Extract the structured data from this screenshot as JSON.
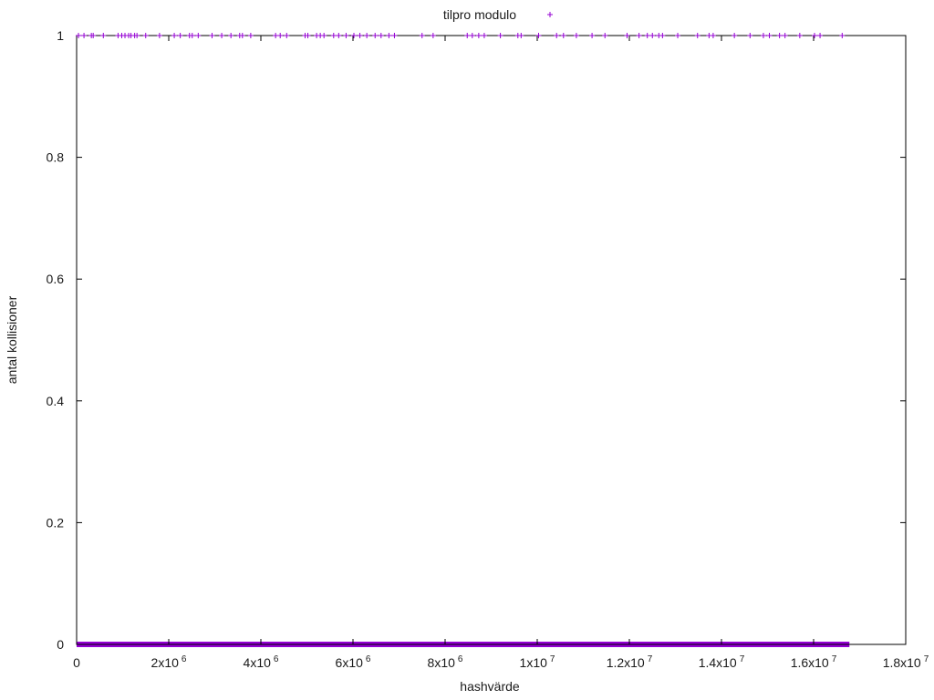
{
  "chart_data": {
    "type": "scatter",
    "title": "",
    "xlabel": "hashvärde",
    "ylabel": "antal kollisioner",
    "xlim": [
      0,
      18000000
    ],
    "ylim": [
      0,
      1
    ],
    "grid": false,
    "legend_position": "top-center",
    "y_ticks": [
      {
        "value": 0,
        "label": "0"
      },
      {
        "value": 0.2,
        "label": "0.2"
      },
      {
        "value": 0.4,
        "label": "0.4"
      },
      {
        "value": 0.6,
        "label": "0.6"
      },
      {
        "value": 0.8,
        "label": "0.8"
      },
      {
        "value": 1,
        "label": "1"
      }
    ],
    "x_ticks": [
      {
        "value": 0,
        "mant": "0",
        "exp": ""
      },
      {
        "value": 2000000,
        "mant": "2x10",
        "exp": "6"
      },
      {
        "value": 4000000,
        "mant": "4x10",
        "exp": "6"
      },
      {
        "value": 6000000,
        "mant": "6x10",
        "exp": "6"
      },
      {
        "value": 8000000,
        "mant": "8x10",
        "exp": "6"
      },
      {
        "value": 10000000,
        "mant": "1x10",
        "exp": "7"
      },
      {
        "value": 12000000,
        "mant": "1.2x10",
        "exp": "7"
      },
      {
        "value": 14000000,
        "mant": "1.4x10",
        "exp": "7"
      },
      {
        "value": 16000000,
        "mant": "1.6x10",
        "exp": "7"
      },
      {
        "value": 18000000,
        "mant": "1.8x10",
        "exp": "7"
      }
    ],
    "series": [
      {
        "name": "tilpro modulo",
        "color": "#9400d3",
        "marker": "plus",
        "points": [
          {
            "x": 40000,
            "y": 1
          },
          {
            "x": 160000,
            "y": 1
          },
          {
            "x": 320000,
            "y": 1
          },
          {
            "x": 360000,
            "y": 1
          },
          {
            "x": 580000,
            "y": 1
          },
          {
            "x": 900000,
            "y": 1
          },
          {
            "x": 980000,
            "y": 1
          },
          {
            "x": 1050000,
            "y": 1
          },
          {
            "x": 1130000,
            "y": 1
          },
          {
            "x": 1180000,
            "y": 1
          },
          {
            "x": 1260000,
            "y": 1
          },
          {
            "x": 1310000,
            "y": 1
          },
          {
            "x": 1500000,
            "y": 1
          },
          {
            "x": 1800000,
            "y": 1
          },
          {
            "x": 2120000,
            "y": 1
          },
          {
            "x": 2250000,
            "y": 1
          },
          {
            "x": 2450000,
            "y": 1
          },
          {
            "x": 2510000,
            "y": 1
          },
          {
            "x": 2640000,
            "y": 1
          },
          {
            "x": 2940000,
            "y": 1
          },
          {
            "x": 3150000,
            "y": 1
          },
          {
            "x": 3350000,
            "y": 1
          },
          {
            "x": 3540000,
            "y": 1
          },
          {
            "x": 3600000,
            "y": 1
          },
          {
            "x": 3780000,
            "y": 1
          },
          {
            "x": 4320000,
            "y": 1
          },
          {
            "x": 4420000,
            "y": 1
          },
          {
            "x": 4560000,
            "y": 1
          },
          {
            "x": 4960000,
            "y": 1
          },
          {
            "x": 5020000,
            "y": 1
          },
          {
            "x": 5210000,
            "y": 1
          },
          {
            "x": 5290000,
            "y": 1
          },
          {
            "x": 5370000,
            "y": 1
          },
          {
            "x": 5580000,
            "y": 1
          },
          {
            "x": 5690000,
            "y": 1
          },
          {
            "x": 5850000,
            "y": 1
          },
          {
            "x": 6020000,
            "y": 1
          },
          {
            "x": 6150000,
            "y": 1
          },
          {
            "x": 6300000,
            "y": 1
          },
          {
            "x": 6480000,
            "y": 1
          },
          {
            "x": 6610000,
            "y": 1
          },
          {
            "x": 6780000,
            "y": 1
          },
          {
            "x": 6900000,
            "y": 1
          },
          {
            "x": 7500000,
            "y": 1
          },
          {
            "x": 7740000,
            "y": 1
          },
          {
            "x": 8480000,
            "y": 1
          },
          {
            "x": 8590000,
            "y": 1
          },
          {
            "x": 8730000,
            "y": 1
          },
          {
            "x": 8850000,
            "y": 1
          },
          {
            "x": 9200000,
            "y": 1
          },
          {
            "x": 9580000,
            "y": 1
          },
          {
            "x": 9650000,
            "y": 1
          },
          {
            "x": 10030000,
            "y": 1
          },
          {
            "x": 10420000,
            "y": 1
          },
          {
            "x": 10570000,
            "y": 1
          },
          {
            "x": 10850000,
            "y": 1
          },
          {
            "x": 11190000,
            "y": 1
          },
          {
            "x": 11470000,
            "y": 1
          },
          {
            "x": 11950000,
            "y": 1
          },
          {
            "x": 12210000,
            "y": 1
          },
          {
            "x": 12390000,
            "y": 1
          },
          {
            "x": 12500000,
            "y": 1
          },
          {
            "x": 12640000,
            "y": 1
          },
          {
            "x": 12720000,
            "y": 1
          },
          {
            "x": 13050000,
            "y": 1
          },
          {
            "x": 13480000,
            "y": 1
          },
          {
            "x": 13730000,
            "y": 1
          },
          {
            "x": 13820000,
            "y": 1
          },
          {
            "x": 14280000,
            "y": 1
          },
          {
            "x": 14620000,
            "y": 1
          },
          {
            "x": 14910000,
            "y": 1
          },
          {
            "x": 15040000,
            "y": 1
          },
          {
            "x": 15260000,
            "y": 1
          },
          {
            "x": 15380000,
            "y": 1
          },
          {
            "x": 15700000,
            "y": 1
          },
          {
            "x": 16020000,
            "y": 1
          },
          {
            "x": 16140000,
            "y": 1
          },
          {
            "x": 16620000,
            "y": 1
          }
        ],
        "zero_range": {
          "x_start": 0,
          "x_end": 16777216,
          "y": 0
        }
      }
    ]
  }
}
